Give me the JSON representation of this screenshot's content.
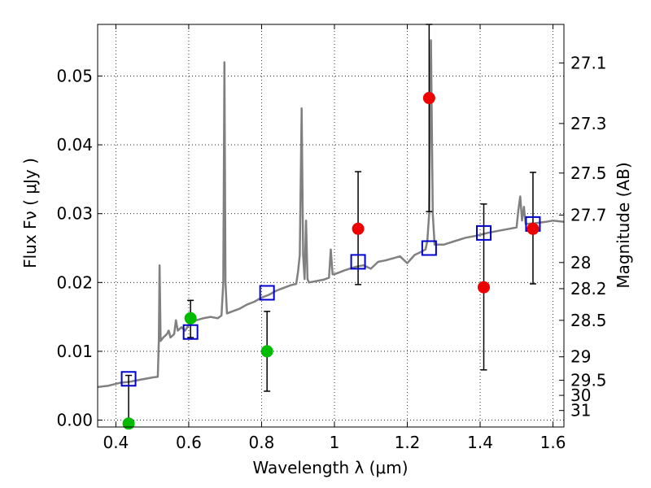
{
  "chart_data": {
    "type": "scatter",
    "xlabel": "Wavelength  λ (μm)",
    "ylabel_left": "Flux  Fν  ( μJy )",
    "ylabel_right": "Magnitude (AB)",
    "xlim": [
      0.35,
      1.63
    ],
    "ylim": [
      -0.001,
      0.0575
    ],
    "x_ticks": [
      0.4,
      0.6,
      0.8,
      1.0,
      1.2,
      1.4,
      1.6
    ],
    "x_tick_labels": [
      "0.4",
      "0.6",
      "0.8",
      "1",
      "1.2",
      "1.4",
      "1.6"
    ],
    "y_ticks": [
      0.0,
      0.01,
      0.02,
      0.03,
      0.04,
      0.05
    ],
    "y_tick_labels": [
      "0.00",
      "0.01",
      "0.02",
      "0.03",
      "0.04",
      "0.05"
    ],
    "right_ticks": [
      {
        "label": "27.1",
        "flux": 0.0519
      },
      {
        "label": "27.3",
        "flux": 0.0431
      },
      {
        "label": "27.5",
        "flux": 0.0359
      },
      {
        "label": "27.7",
        "flux": 0.0298
      },
      {
        "label": "28",
        "flux": 0.0229
      },
      {
        "label": "28.2",
        "flux": 0.0191
      },
      {
        "label": "28.5",
        "flux": 0.0145
      },
      {
        "label": "29",
        "flux": 0.0092
      },
      {
        "label": "29.5",
        "flux": 0.0058
      },
      {
        "label": "30",
        "flux": 0.0036
      },
      {
        "label": "31",
        "flux": 0.0014
      }
    ],
    "grid": true,
    "colors": {
      "model": "#808080",
      "model_points": "#0000cc",
      "green_points": "#00bb00",
      "red_points": "#ee0000",
      "errorbar": "#000000"
    },
    "series": [
      {
        "marker": "line",
        "points": [
          [
            0.35,
            0.0048
          ],
          [
            0.38,
            0.005
          ],
          [
            0.41,
            0.0054
          ],
          [
            0.44,
            0.0056
          ],
          [
            0.47,
            0.0059
          ],
          [
            0.5,
            0.0062
          ],
          [
            0.515,
            0.0063
          ],
          [
            0.518,
            0.0115
          ],
          [
            0.52,
            0.0225
          ],
          [
            0.523,
            0.0115
          ],
          [
            0.53,
            0.012
          ],
          [
            0.54,
            0.0125
          ],
          [
            0.545,
            0.013
          ],
          [
            0.55,
            0.012
          ],
          [
            0.56,
            0.0125
          ],
          [
            0.565,
            0.0145
          ],
          [
            0.57,
            0.013
          ],
          [
            0.58,
            0.0135
          ],
          [
            0.59,
            0.013
          ],
          [
            0.6,
            0.0138
          ],
          [
            0.62,
            0.0145
          ],
          [
            0.64,
            0.0148
          ],
          [
            0.66,
            0.015
          ],
          [
            0.68,
            0.0148
          ],
          [
            0.69,
            0.0152
          ],
          [
            0.695,
            0.02
          ],
          [
            0.698,
            0.052
          ],
          [
            0.701,
            0.02
          ],
          [
            0.705,
            0.0155
          ],
          [
            0.72,
            0.0158
          ],
          [
            0.74,
            0.0162
          ],
          [
            0.76,
            0.0168
          ],
          [
            0.78,
            0.0172
          ],
          [
            0.8,
            0.0178
          ],
          [
            0.82,
            0.0182
          ],
          [
            0.84,
            0.0188
          ],
          [
            0.86,
            0.0192
          ],
          [
            0.88,
            0.0196
          ],
          [
            0.895,
            0.0198
          ],
          [
            0.9,
            0.0215
          ],
          [
            0.905,
            0.024
          ],
          [
            0.91,
            0.0453
          ],
          [
            0.914,
            0.024
          ],
          [
            0.918,
            0.0205
          ],
          [
            0.922,
            0.029
          ],
          [
            0.926,
            0.0205
          ],
          [
            0.93,
            0.02
          ],
          [
            0.95,
            0.0202
          ],
          [
            0.97,
            0.0204
          ],
          [
            0.985,
            0.0207
          ],
          [
            0.99,
            0.0248
          ],
          [
            0.995,
            0.0212
          ],
          [
            1.0,
            0.0212
          ],
          [
            1.03,
            0.0218
          ],
          [
            1.06,
            0.0223
          ],
          [
            1.08,
            0.0225
          ],
          [
            1.1,
            0.022
          ],
          [
            1.12,
            0.023
          ],
          [
            1.14,
            0.0232
          ],
          [
            1.16,
            0.0235
          ],
          [
            1.18,
            0.0238
          ],
          [
            1.2,
            0.0228
          ],
          [
            1.22,
            0.024
          ],
          [
            1.24,
            0.0245
          ],
          [
            1.25,
            0.0248
          ],
          [
            1.255,
            0.026
          ],
          [
            1.26,
            0.03
          ],
          [
            1.265,
            0.0552
          ],
          [
            1.27,
            0.03
          ],
          [
            1.275,
            0.0255
          ],
          [
            1.3,
            0.0255
          ],
          [
            1.33,
            0.026
          ],
          [
            1.36,
            0.0265
          ],
          [
            1.39,
            0.0268
          ],
          [
            1.42,
            0.0272
          ],
          [
            1.45,
            0.0275
          ],
          [
            1.48,
            0.0278
          ],
          [
            1.5,
            0.028
          ],
          [
            1.505,
            0.0305
          ],
          [
            1.51,
            0.0325
          ],
          [
            1.515,
            0.029
          ],
          [
            1.52,
            0.031
          ],
          [
            1.525,
            0.0285
          ],
          [
            1.55,
            0.0286
          ],
          [
            1.58,
            0.0288
          ],
          [
            1.6,
            0.029
          ],
          [
            1.63,
            0.0288
          ]
        ]
      },
      {
        "marker": "open-square",
        "points": [
          [
            0.435,
            0.006
          ],
          [
            0.605,
            0.0128
          ],
          [
            0.815,
            0.0185
          ],
          [
            1.065,
            0.023
          ],
          [
            1.26,
            0.025
          ],
          [
            1.41,
            0.0272
          ],
          [
            1.545,
            0.0285
          ]
        ]
      },
      {
        "marker": "circle-green",
        "points": [
          {
            "x": 0.435,
            "y": -0.0005,
            "lo": 0.0,
            "hi": 0.0065
          },
          {
            "x": 0.605,
            "y": 0.0148,
            "lo": 0.012,
            "hi": 0.0174
          },
          {
            "x": 0.815,
            "y": 0.01,
            "lo": 0.0042,
            "hi": 0.0158
          }
        ]
      },
      {
        "marker": "circle-red",
        "points": [
          {
            "x": 1.065,
            "y": 0.0278,
            "lo": 0.0197,
            "hi": 0.0361
          },
          {
            "x": 1.26,
            "y": 0.0468,
            "lo": 0.0303,
            "hi": 0.0575
          },
          {
            "x": 1.41,
            "y": 0.0193,
            "lo": 0.0073,
            "hi": 0.0314
          },
          {
            "x": 1.545,
            "y": 0.0278,
            "lo": 0.0198,
            "hi": 0.036
          }
        ]
      }
    ]
  }
}
